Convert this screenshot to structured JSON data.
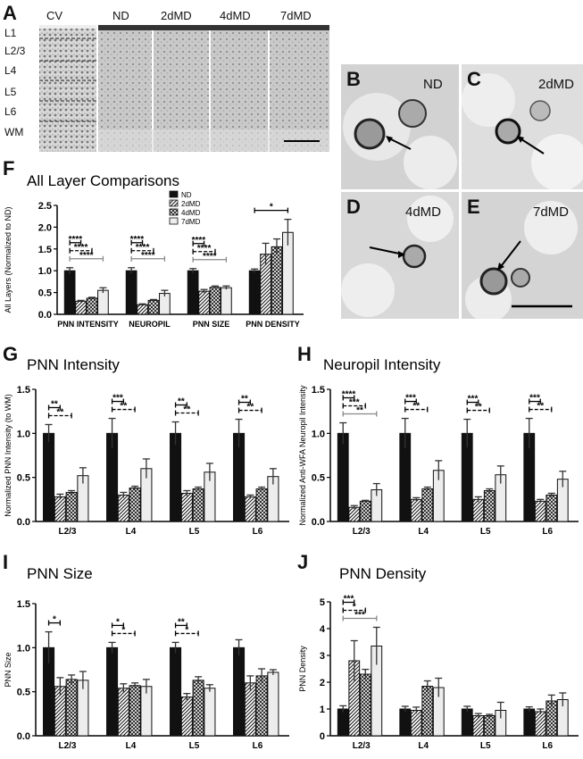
{
  "panel_letters": {
    "A": "A",
    "B": "B",
    "C": "C",
    "D": "D",
    "E": "E",
    "F": "F",
    "G": "G",
    "H": "H",
    "I": "I",
    "J": "J"
  },
  "panelA": {
    "columns": [
      "CV",
      "ND",
      "2dMD",
      "4dMD",
      "7dMD"
    ],
    "layers": [
      "L1",
      "L2/3",
      "L4",
      "L5",
      "L6",
      "WM"
    ]
  },
  "micrographs": [
    {
      "letter": "B",
      "label": "ND"
    },
    {
      "letter": "C",
      "label": "2dMD"
    },
    {
      "letter": "D",
      "label": "4dMD"
    },
    {
      "letter": "E",
      "label": "7dMD"
    }
  ],
  "legend": [
    "ND",
    "2dMD",
    "4dMD",
    "7dMD"
  ],
  "colors": {
    "ND": "#111111",
    "2dMD": "#777777",
    "4dMD": "#999999",
    "7dMD": "#e8e8e8"
  },
  "chart_data": [
    {
      "id": "F",
      "type": "bar",
      "title": "All Layer Comparisons",
      "ylabel": "All  Layers (Normalized to ND)",
      "ylim": [
        0,
        2.5
      ],
      "yticks": [
        "0.0",
        "0.5",
        "1.0",
        "1.5",
        "2.0",
        "2.5"
      ],
      "categories": [
        "PNN INTENSITY",
        "NEUROPIL",
        "PNN SIZE",
        "PNN DENSITY"
      ],
      "series": [
        {
          "name": "ND",
          "values": [
            1.0,
            1.0,
            1.0,
            1.0
          ],
          "err": [
            0.07,
            0.07,
            0.05,
            0.04
          ]
        },
        {
          "name": "2dMD",
          "values": [
            0.3,
            0.22,
            0.53,
            1.38
          ],
          "err": [
            0.02,
            0.02,
            0.04,
            0.25
          ]
        },
        {
          "name": "4dMD",
          "values": [
            0.37,
            0.32,
            0.62,
            1.55
          ],
          "err": [
            0.02,
            0.02,
            0.03,
            0.18
          ]
        },
        {
          "name": "7dMD",
          "values": [
            0.55,
            0.48,
            0.61,
            1.88
          ],
          "err": [
            0.06,
            0.07,
            0.04,
            0.3
          ]
        }
      ],
      "significance": [
        [
          "****",
          "****",
          "****"
        ],
        [
          "****",
          "****",
          "****"
        ],
        [
          "****",
          "****",
          "****"
        ],
        [
          "*"
        ]
      ]
    },
    {
      "id": "G",
      "type": "bar",
      "title": "PNN Intensity",
      "ylabel": "Normalized PNN Intensity (to WM)",
      "ylim": [
        0,
        1.5
      ],
      "yticks": [
        "0.0",
        "0.5",
        "1.0",
        "1.5"
      ],
      "categories": [
        "L2/3",
        "L4",
        "L5",
        "L6"
      ],
      "series": [
        {
          "name": "ND",
          "values": [
            1.0,
            1.0,
            1.0,
            1.0
          ],
          "err": [
            0.1,
            0.17,
            0.13,
            0.16
          ]
        },
        {
          "name": "2dMD",
          "values": [
            0.28,
            0.3,
            0.32,
            0.28
          ],
          "err": [
            0.03,
            0.03,
            0.03,
            0.02
          ]
        },
        {
          "name": "4dMD",
          "values": [
            0.33,
            0.38,
            0.37,
            0.37
          ],
          "err": [
            0.02,
            0.02,
            0.02,
            0.02
          ]
        },
        {
          "name": "7dMD",
          "values": [
            0.52,
            0.6,
            0.56,
            0.51
          ],
          "err": [
            0.09,
            0.11,
            0.1,
            0.09
          ]
        }
      ],
      "significance": [
        [
          "**",
          "**"
        ],
        [
          "***",
          "**"
        ],
        [
          "**",
          "**"
        ],
        [
          "**",
          "**"
        ]
      ]
    },
    {
      "id": "H",
      "type": "bar",
      "title": "Neuropil Intensity",
      "ylabel": "Normalized Anti-WFA Neuropil Intensity",
      "ylim": [
        0,
        1.5
      ],
      "yticks": [
        "0.0",
        "0.5",
        "1.0",
        "1.5"
      ],
      "categories": [
        "L2/3",
        "L4",
        "L5",
        "L6"
      ],
      "series": [
        {
          "name": "ND",
          "values": [
            1.0,
            1.0,
            1.0,
            1.0
          ],
          "err": [
            0.12,
            0.17,
            0.16,
            0.17
          ]
        },
        {
          "name": "2dMD",
          "values": [
            0.16,
            0.25,
            0.25,
            0.23
          ],
          "err": [
            0.02,
            0.02,
            0.03,
            0.02
          ]
        },
        {
          "name": "4dMD",
          "values": [
            0.23,
            0.37,
            0.35,
            0.3
          ],
          "err": [
            0.01,
            0.02,
            0.02,
            0.02
          ]
        },
        {
          "name": "7dMD",
          "values": [
            0.36,
            0.58,
            0.53,
            0.48
          ],
          "err": [
            0.07,
            0.11,
            0.1,
            0.09
          ]
        }
      ],
      "significance": [
        [
          "****",
          "***",
          "**"
        ],
        [
          "***",
          "**"
        ],
        [
          "***",
          "**"
        ],
        [
          "***",
          "**"
        ]
      ]
    },
    {
      "id": "I",
      "type": "bar",
      "title": "PNN Size",
      "ylabel": "PNN Size",
      "ylim": [
        0,
        1.5
      ],
      "yticks": [
        "0.0",
        "0.5",
        "1.0",
        "1.5"
      ],
      "categories": [
        "L2/3",
        "L4",
        "L5",
        "L6"
      ],
      "series": [
        {
          "name": "ND",
          "values": [
            1.0,
            1.0,
            1.0,
            1.0
          ],
          "err": [
            0.18,
            0.06,
            0.06,
            0.09
          ]
        },
        {
          "name": "2dMD",
          "values": [
            0.56,
            0.54,
            0.44,
            0.6
          ],
          "err": [
            0.1,
            0.05,
            0.04,
            0.08
          ]
        },
        {
          "name": "4dMD",
          "values": [
            0.64,
            0.57,
            0.63,
            0.68
          ],
          "err": [
            0.05,
            0.03,
            0.04,
            0.08
          ]
        },
        {
          "name": "7dMD",
          "values": [
            0.63,
            0.56,
            0.54,
            0.72
          ],
          "err": [
            0.1,
            0.08,
            0.04,
            0.03
          ]
        }
      ],
      "significance": [
        [
          "*"
        ],
        [
          "*",
          "*"
        ],
        [
          "**",
          "*"
        ],
        []
      ]
    },
    {
      "id": "J",
      "type": "bar",
      "title": "PNN Density",
      "ylabel": "PNN Density",
      "ylim": [
        0,
        5
      ],
      "yticks": [
        "0",
        "1",
        "2",
        "3",
        "4",
        "5"
      ],
      "categories": [
        "L2/3",
        "L4",
        "L5",
        "L6"
      ],
      "series": [
        {
          "name": "ND",
          "values": [
            1.0,
            1.0,
            1.0,
            1.0
          ],
          "err": [
            0.12,
            0.1,
            0.1,
            0.08
          ]
        },
        {
          "name": "2dMD",
          "values": [
            2.8,
            0.95,
            0.75,
            0.9
          ],
          "err": [
            0.75,
            0.12,
            0.08,
            0.1
          ]
        },
        {
          "name": "4dMD",
          "values": [
            2.3,
            1.85,
            0.75,
            1.3
          ],
          "err": [
            0.18,
            0.2,
            0.05,
            0.22
          ]
        },
        {
          "name": "7dMD",
          "values": [
            3.35,
            1.8,
            0.95,
            1.35
          ],
          "err": [
            0.7,
            0.35,
            0.3,
            0.25
          ]
        }
      ],
      "significance": [
        [
          "***",
          "*",
          "***"
        ],
        [],
        [],
        []
      ]
    }
  ]
}
